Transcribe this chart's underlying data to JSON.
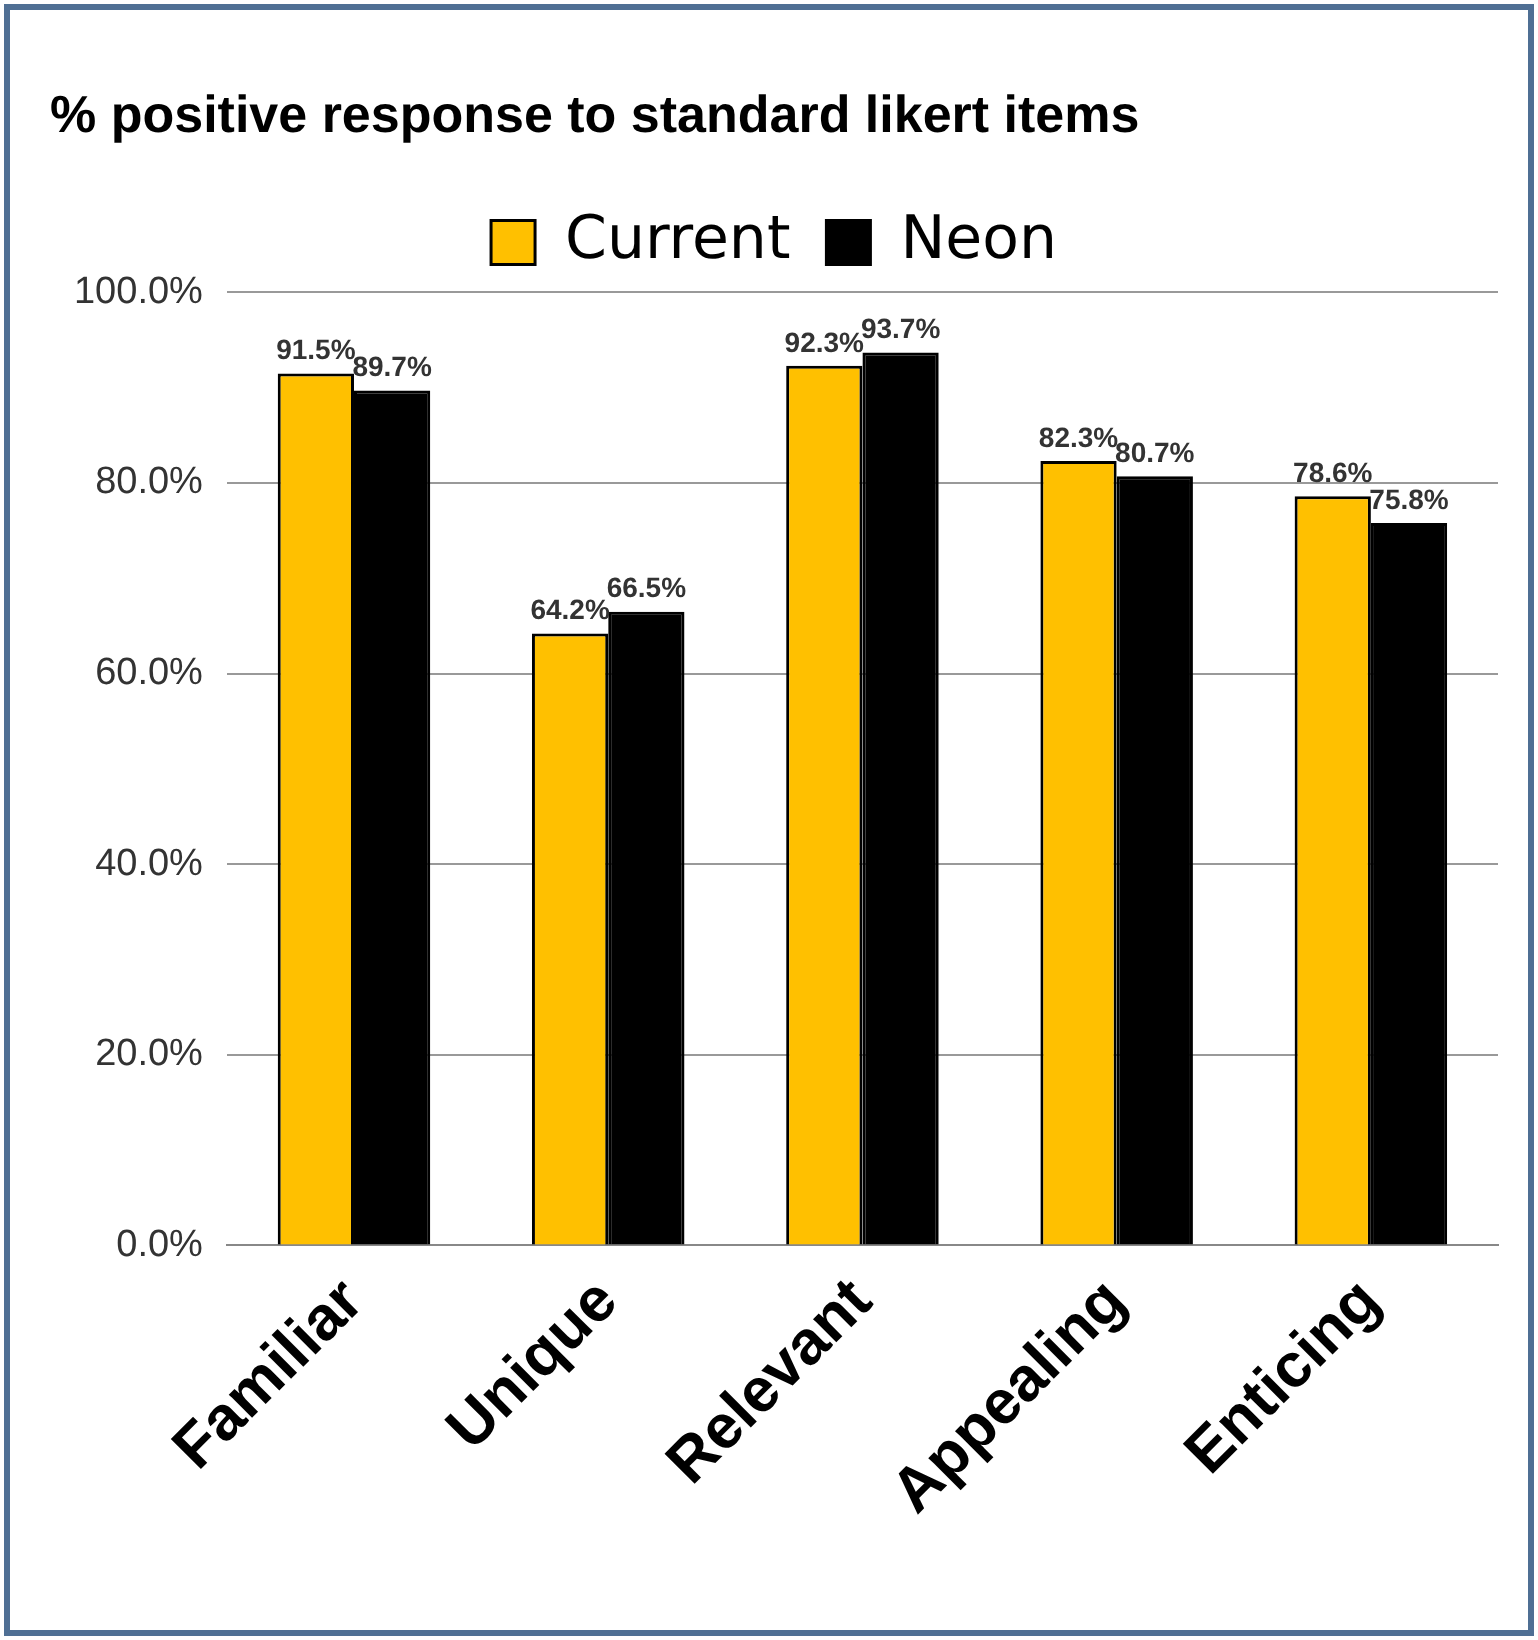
{
  "chart_data": {
    "type": "bar",
    "title": "% positive response to standard likert items",
    "categories": [
      "Familiar",
      "Unique",
      "Relevant",
      "Appealing",
      "Enticing"
    ],
    "series": [
      {
        "name": "Current",
        "color": "#ffc000",
        "values": [
          91.5,
          64.2,
          92.3,
          82.3,
          78.6
        ],
        "value_labels": [
          "91.5%",
          "64.2%",
          "92.3%",
          "82.3%",
          "78.6%"
        ]
      },
      {
        "name": "Neon",
        "color": "#000000",
        "values": [
          89.7,
          66.5,
          93.7,
          80.7,
          75.8
        ],
        "value_labels": [
          "89.7%",
          "66.5%",
          "93.7%",
          "80.7%",
          "75.8%"
        ]
      }
    ],
    "ylim": [
      0,
      100
    ],
    "yticks": [
      {
        "value": 0,
        "label": "0.0%"
      },
      {
        "value": 20,
        "label": "20.0%"
      },
      {
        "value": 40,
        "label": "40.0%"
      },
      {
        "value": 60,
        "label": "60.0%"
      },
      {
        "value": 80,
        "label": "80.0%"
      },
      {
        "value": 100,
        "label": "100.0%"
      }
    ],
    "grid": "y",
    "legend": "top"
  }
}
